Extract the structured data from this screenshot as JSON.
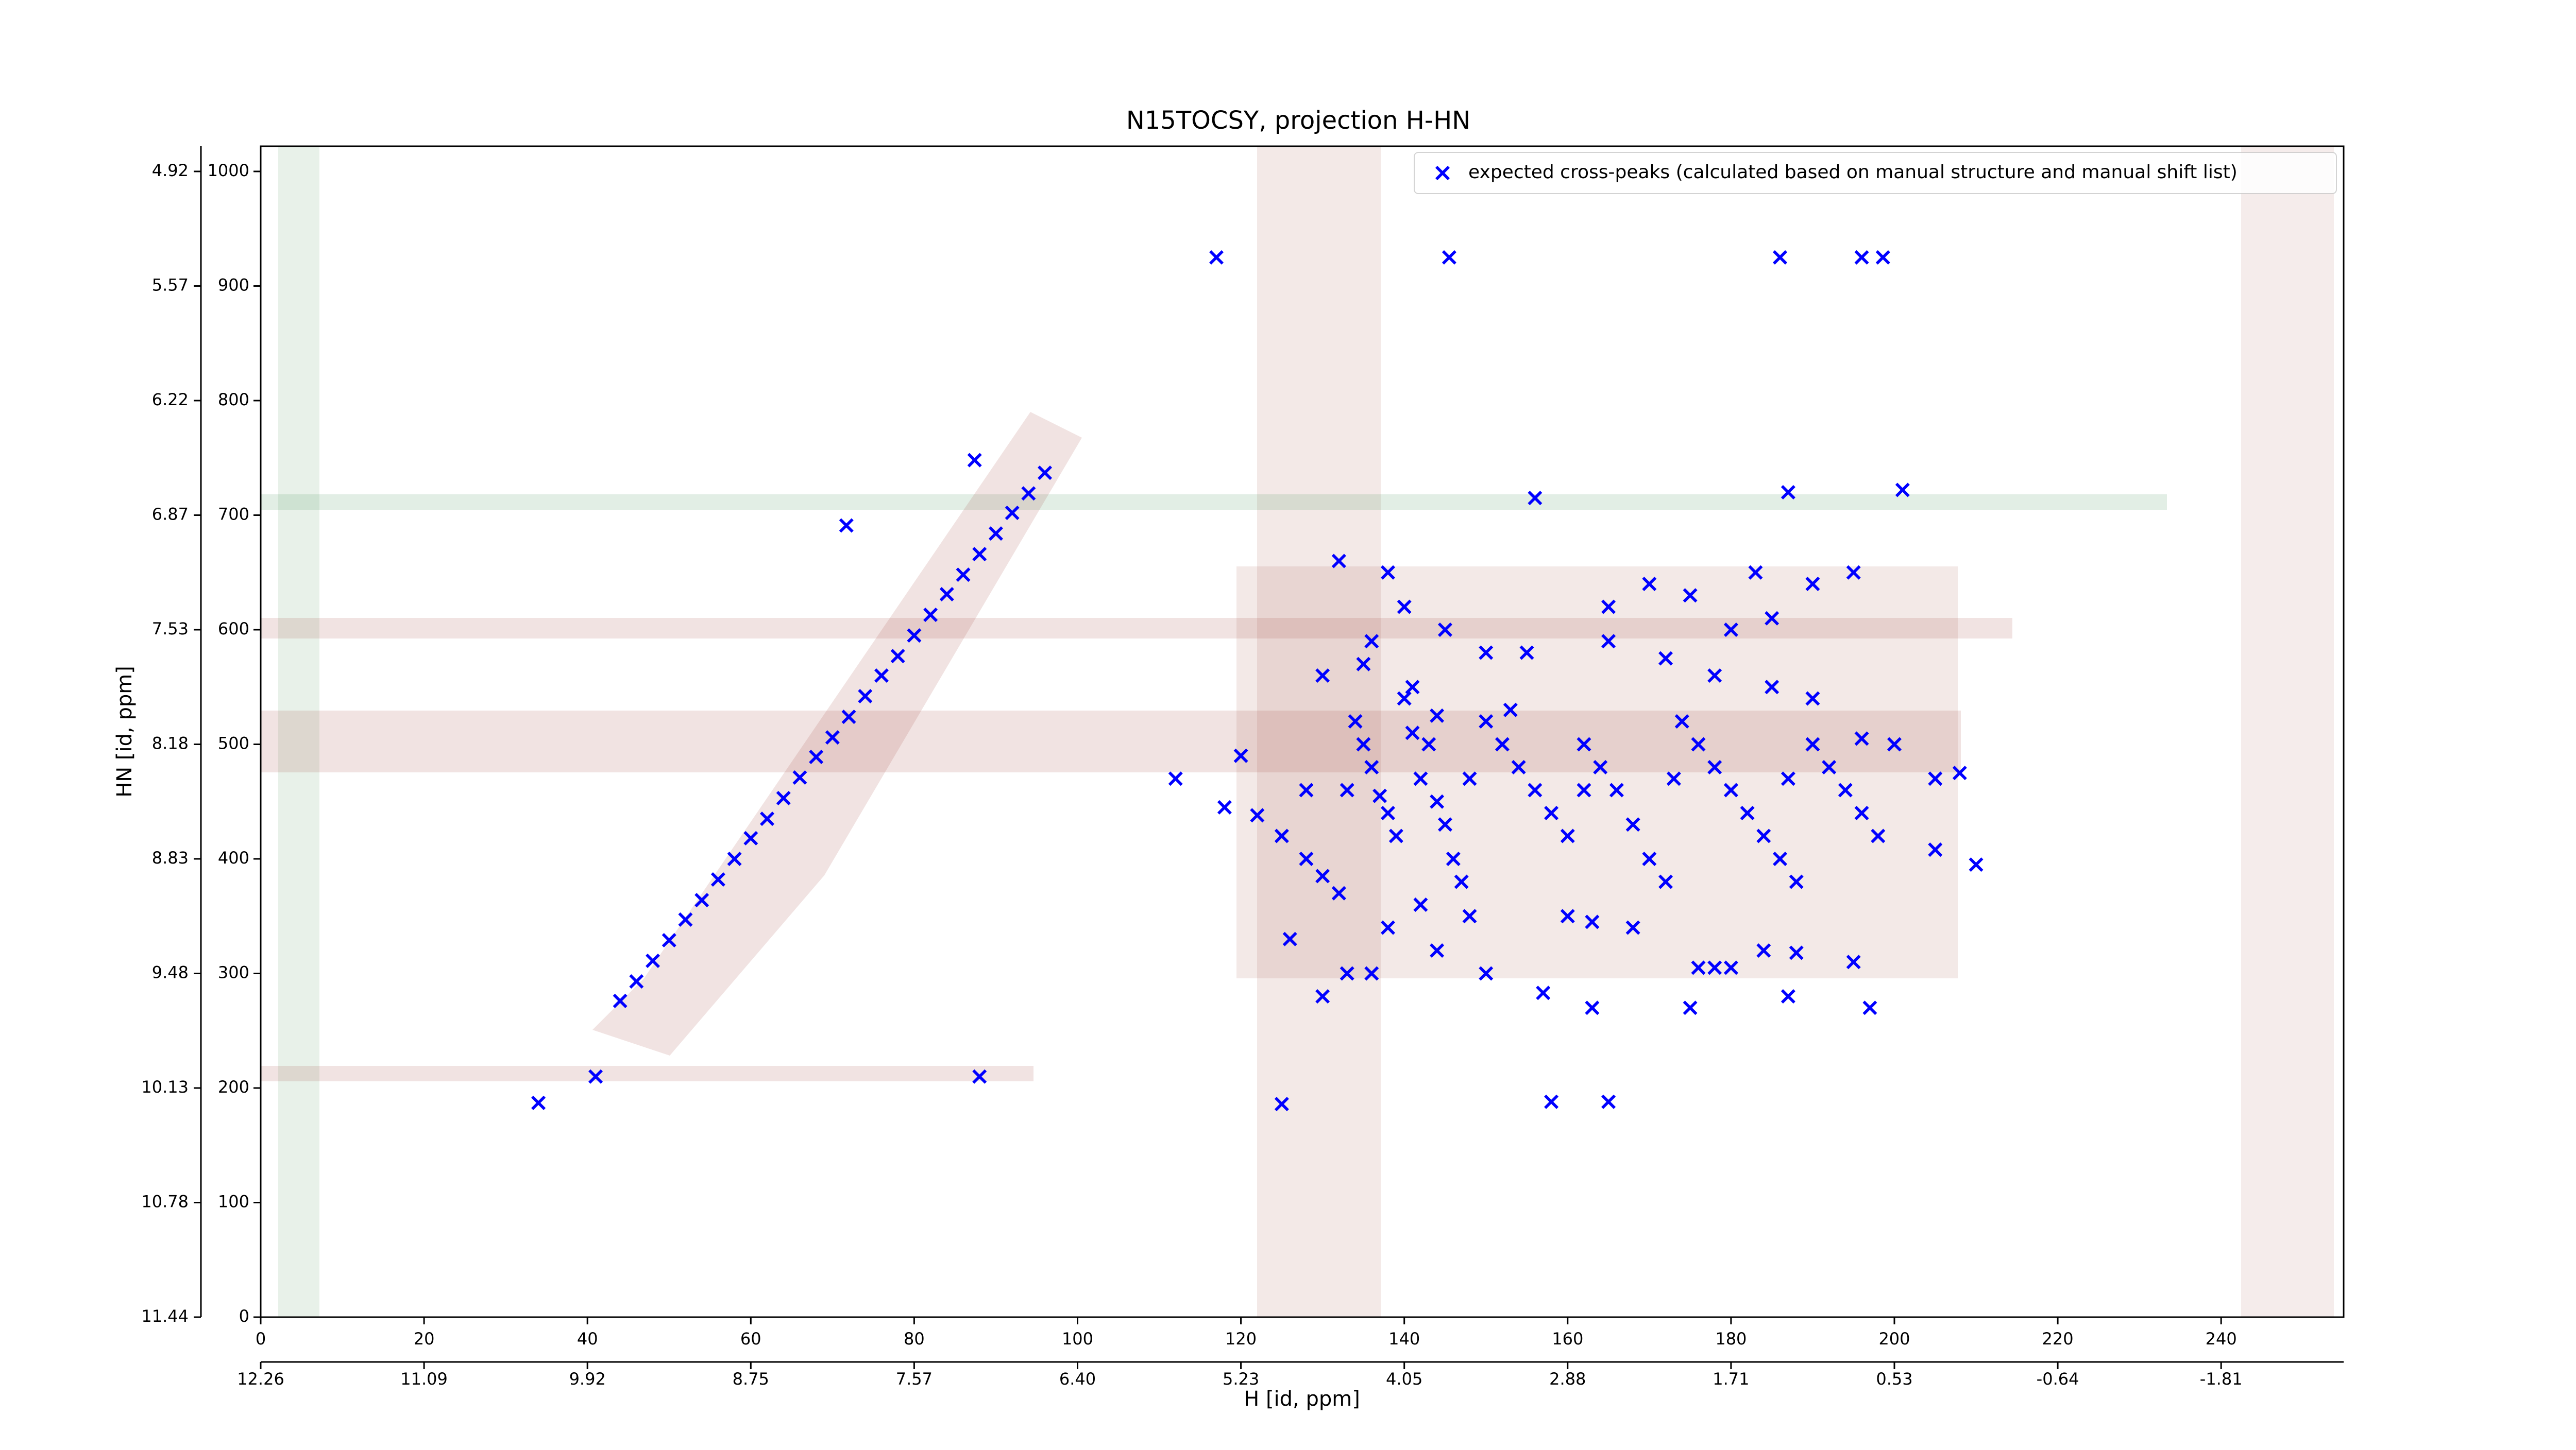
{
  "chart_data": {
    "type": "scatter",
    "title": "N15TOCSY, projection H-HN",
    "x_label": "H [id, ppm]",
    "y_label": "HN [id, ppm]",
    "xlim": [
      0,
      255
    ],
    "ylim": [
      0,
      1022
    ],
    "xticks": [
      0,
      20,
      40,
      60,
      80,
      100,
      120,
      140,
      160,
      180,
      200,
      220,
      240
    ],
    "x2ticks": [
      {
        "value": 0,
        "label": "12.26"
      },
      {
        "value": 20,
        "label": "11.09"
      },
      {
        "value": 40,
        "label": "9.92"
      },
      {
        "value": 60,
        "label": "8.75"
      },
      {
        "value": 80,
        "label": "7.57"
      },
      {
        "value": 100,
        "label": "6.40"
      },
      {
        "value": 120,
        "label": "5.23"
      },
      {
        "value": 140,
        "label": "4.05"
      },
      {
        "value": 160,
        "label": "2.88"
      },
      {
        "value": 180,
        "label": "1.71"
      },
      {
        "value": 200,
        "label": "0.53"
      },
      {
        "value": 220,
        "label": "-0.64"
      },
      {
        "value": 240,
        "label": "-1.81"
      }
    ],
    "yticks": [
      0,
      100,
      200,
      300,
      400,
      500,
      600,
      700,
      800,
      900,
      1000
    ],
    "y2ticks": [
      {
        "value": 0,
        "label": "11.44"
      },
      {
        "value": 100,
        "label": "10.78"
      },
      {
        "value": 200,
        "label": "10.13"
      },
      {
        "value": 300,
        "label": "9.48"
      },
      {
        "value": 400,
        "label": "8.83"
      },
      {
        "value": 500,
        "label": "8.18"
      },
      {
        "value": 600,
        "label": "7.53"
      },
      {
        "value": 700,
        "label": "6.87"
      },
      {
        "value": 800,
        "label": "6.22"
      },
      {
        "value": 900,
        "label": "5.57"
      },
      {
        "value": 1000,
        "label": "4.92"
      }
    ],
    "legend": "upper right",
    "x": [
      34,
      41,
      44,
      46,
      48,
      50,
      52,
      54,
      56,
      58,
      60,
      62,
      64,
      66,
      68,
      70,
      72,
      74,
      76,
      78,
      80,
      82,
      84,
      86,
      88,
      90,
      92,
      94,
      96,
      88,
      117,
      145.5,
      186,
      196,
      198.6,
      87.4,
      201,
      187,
      156,
      71.7,
      122,
      125,
      128,
      130,
      132,
      133,
      134,
      135,
      136,
      137,
      138,
      139,
      140,
      141,
      142,
      143,
      144,
      145,
      146,
      147,
      148,
      150,
      152,
      154,
      156,
      158,
      160,
      162,
      164,
      166,
      168,
      170,
      172,
      174,
      176,
      178,
      180,
      182,
      184,
      186,
      188,
      190,
      192,
      194,
      196,
      198,
      200,
      155,
      165,
      175,
      180,
      185,
      190,
      195,
      170,
      183,
      160,
      163,
      168,
      176,
      178,
      180,
      184,
      188,
      195,
      205,
      210,
      150,
      157,
      163,
      175,
      187,
      197,
      158,
      165,
      125,
      133,
      130,
      126,
      138,
      142,
      144,
      136,
      128,
      118,
      112,
      185,
      178,
      172,
      165,
      140,
      145,
      150,
      135,
      130,
      138,
      132,
      153,
      120,
      190,
      205,
      208,
      196,
      187,
      173,
      162,
      148,
      144,
      141,
      136
    ],
    "series": [
      {
        "name": "expected cross-peaks (calculated based on manual structure and manual shift list)",
        "color": "#0000ff",
        "values": [
          187,
          210,
          276,
          293,
          311,
          329,
          347,
          364,
          382,
          400,
          418,
          435,
          453,
          471,
          489,
          506,
          524,
          542,
          560,
          577,
          595,
          613,
          631,
          648,
          666,
          684,
          702,
          719,
          737,
          210,
          925,
          925,
          925,
          925,
          925,
          748,
          722,
          720,
          715,
          691,
          438,
          420,
          400,
          385,
          370,
          460,
          520,
          500,
          480,
          455,
          440,
          420,
          540,
          510,
          470,
          500,
          450,
          430,
          400,
          380,
          350,
          520,
          500,
          480,
          460,
          440,
          420,
          500,
          480,
          460,
          430,
          400,
          380,
          520,
          500,
          480,
          460,
          440,
          420,
          400,
          380,
          500,
          480,
          460,
          440,
          420,
          500,
          580,
          620,
          630,
          600,
          610,
          640,
          650,
          640,
          650,
          350,
          345,
          340,
          305,
          305,
          305,
          320,
          318,
          310,
          408,
          395,
          300,
          283,
          270,
          270,
          280,
          270,
          188,
          188,
          186,
          300,
          280,
          330,
          340,
          360,
          320,
          300,
          460,
          445,
          470,
          550,
          560,
          575,
          590,
          620,
          600,
          580,
          570,
          560,
          650,
          660,
          530,
          490,
          540,
          470,
          475,
          505,
          470,
          470,
          460,
          470,
          525,
          550,
          590
        ]
      }
    ]
  }
}
